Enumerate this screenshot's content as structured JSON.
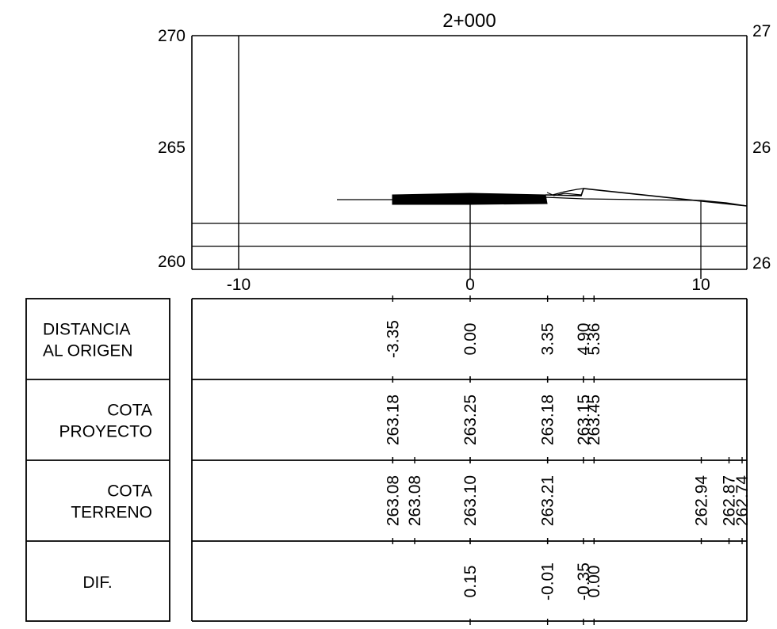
{
  "section": {
    "station": "2+000",
    "elevation_ticks": [
      "270",
      "265",
      "260"
    ],
    "elevation_ticks_right": [
      "27",
      "26",
      "26"
    ],
    "offset_ticks": [
      "-10",
      "0",
      "10"
    ]
  },
  "chart_data": {
    "type": "line",
    "title": "2+000",
    "xlim": [
      -12,
      12
    ],
    "ylim": [
      260,
      270
    ],
    "x_ticks": [
      -10,
      0,
      10
    ],
    "y_ticks": [
      260,
      265,
      270
    ],
    "grid": false,
    "series": [
      {
        "points": [
          [
            -5.8,
            263.0
          ],
          [
            3.35,
            263.18
          ],
          [
            4.9,
            263.15
          ],
          [
            5.36,
            263.45
          ],
          [
            12,
            262.74
          ]
        ]
      },
      {
        "points": [
          [
            -3.35,
            263.08
          ],
          [
            -2.4,
            263.08
          ],
          [
            0,
            263.1
          ],
          [
            3.35,
            263.21
          ],
          [
            10,
            262.94
          ],
          [
            11.2,
            262.87
          ],
          [
            12,
            262.74
          ]
        ]
      }
    ],
    "reference_lines": [
      {
        "axis": "x",
        "value": -10
      },
      {
        "axis": "y",
        "value": 261.0
      },
      {
        "axis": "y",
        "value": 262.0
      }
    ]
  },
  "table": {
    "rows": [
      {
        "label_lines": [
          "DISTANCIA",
          "AL ORIGEN"
        ],
        "align": "left",
        "values": [
          {
            "x": -3.35,
            "text": "-3.35"
          },
          {
            "x": 0,
            "text": "0.00"
          },
          {
            "x": 3.35,
            "text": "3.35"
          },
          {
            "x": 4.9,
            "text": "4.90"
          },
          {
            "x": 5.36,
            "text": "5.36"
          }
        ]
      },
      {
        "label_lines": [
          "COTA",
          "PROYECTO"
        ],
        "align": "right",
        "values": [
          {
            "x": -3.35,
            "text": "263.18"
          },
          {
            "x": 0,
            "text": "263.25"
          },
          {
            "x": 3.35,
            "text": "263.18"
          },
          {
            "x": 4.9,
            "text": "263.15"
          },
          {
            "x": 5.36,
            "text": "263.45"
          }
        ]
      },
      {
        "label_lines": [
          "COTA",
          "TERRENO"
        ],
        "align": "right",
        "values": [
          {
            "x": -3.35,
            "text": "263.08"
          },
          {
            "x": -2.4,
            "text": "263.08"
          },
          {
            "x": 0,
            "text": "263.10"
          },
          {
            "x": 3.35,
            "text": "263.21"
          },
          {
            "x": 10,
            "text": "262.94"
          },
          {
            "x": 11.2,
            "text": "262.87"
          },
          {
            "x": 12,
            "text": "262.74"
          }
        ]
      },
      {
        "label_lines": [
          "DIF."
        ],
        "align": "center",
        "values": [
          {
            "x": 0,
            "text": "0.15"
          },
          {
            "x": 3.35,
            "text": "-0.01"
          },
          {
            "x": 4.9,
            "text": "-0.35"
          },
          {
            "x": 5.36,
            "text": "0.00"
          }
        ]
      }
    ]
  }
}
